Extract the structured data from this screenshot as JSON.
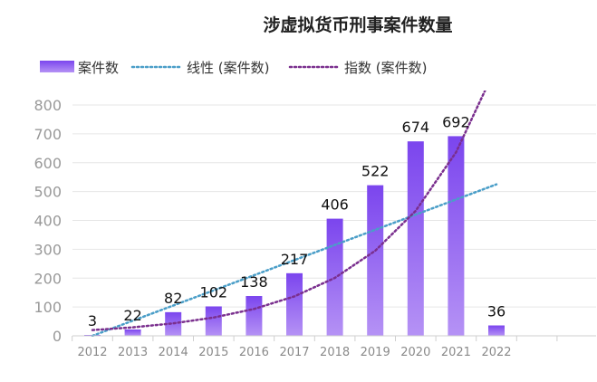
{
  "chart_data": {
    "type": "bar",
    "title": "涉虚拟货币刑事案件数量",
    "categories": [
      "2012",
      "2013",
      "2014",
      "2015",
      "2016",
      "2017",
      "2018",
      "2019",
      "2020",
      "2021",
      "2022"
    ],
    "series": [
      {
        "name": "案件数",
        "type": "bar",
        "values": [
          3,
          22,
          82,
          102,
          138,
          217,
          406,
          522,
          674,
          692,
          36
        ]
      },
      {
        "name": "线性 (案件数)",
        "type": "trendline-linear",
        "values": [
          0,
          52.5,
          105,
          157.5,
          210,
          262.5,
          315,
          367.5,
          420,
          472.5,
          525
        ]
      },
      {
        "name": "指数 (案件数)",
        "type": "trendline-exponential",
        "values": [
          20,
          29.4,
          43.2,
          63.4,
          93.1,
          136.7,
          200.8,
          294.9,
          433.1,
          636.1,
          934.2
        ]
      }
    ],
    "yticks": [
      0,
      100,
      200,
      300,
      400,
      500,
      600,
      700,
      800
    ],
    "ylim": [
      0,
      800
    ],
    "grid": true,
    "legend_position": "top-left",
    "colors": {
      "bar_top": "#7b45ee",
      "bar_bottom": "#b592f5",
      "linear": "#4a9ec8",
      "exponential": "#7a2f8e"
    }
  }
}
